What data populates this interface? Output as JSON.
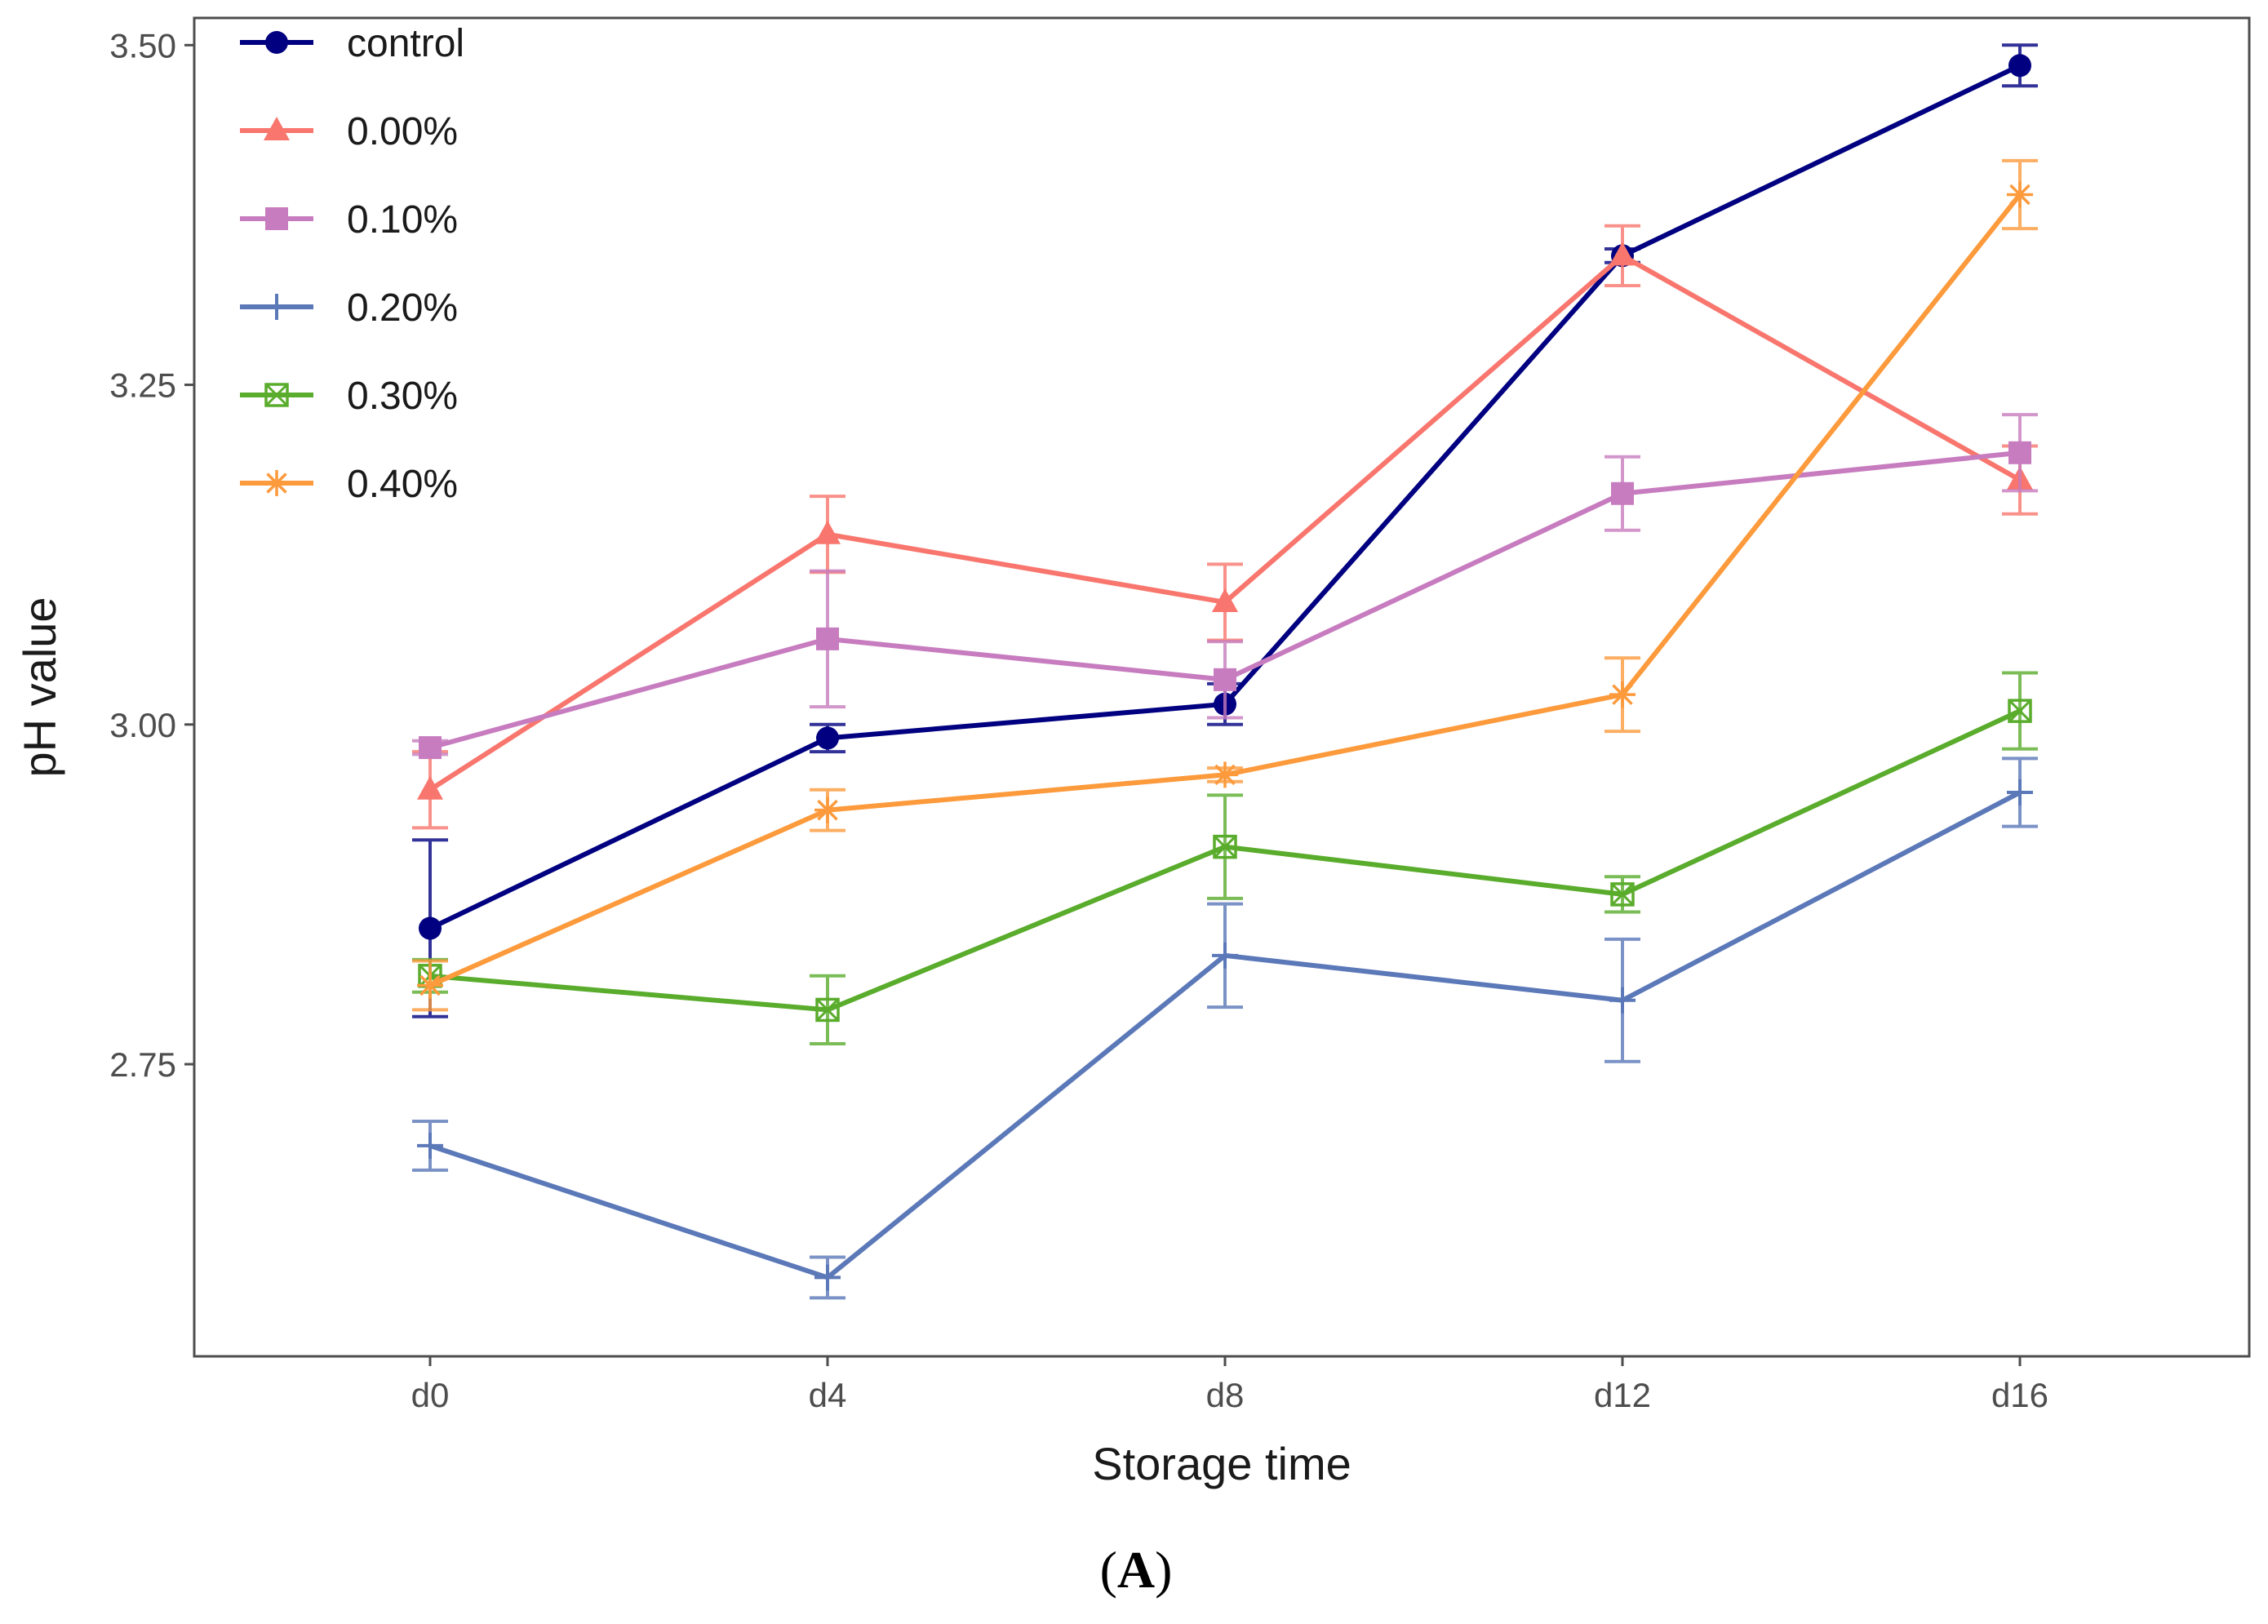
{
  "chart_data": {
    "type": "line",
    "title": "",
    "xlabel": "Storage time",
    "ylabel": "pH value",
    "caption_open": "(",
    "caption_letter": "A",
    "caption_close": ")",
    "categories": [
      "d0",
      "d4",
      "d8",
      "d12",
      "d16"
    ],
    "ylim": [
      2.535,
      3.52
    ],
    "yticks": [
      2.75,
      3.0,
      3.25,
      3.5
    ],
    "ytick_labels": [
      "2.75",
      "3.00",
      "3.25",
      "3.50"
    ],
    "legend_position": "top-left",
    "grid": false,
    "series": [
      {
        "name": "control",
        "color": "#000080",
        "marker": "circle",
        "values": [
          2.85,
          2.99,
          3.015,
          3.345,
          3.485
        ],
        "errors": [
          0.065,
          0.01,
          0.015,
          0.005,
          0.015
        ]
      },
      {
        "name": "0.00%",
        "color": "#f8766d",
        "marker": "triangle",
        "values": [
          2.952,
          3.14,
          3.09,
          3.345,
          3.18
        ],
        "errors": [
          0.028,
          0.028,
          0.028,
          0.022,
          0.025
        ]
      },
      {
        "name": "0.10%",
        "color": "#c77cbf",
        "marker": "square",
        "values": [
          2.983,
          3.063,
          3.033,
          3.17,
          3.2
        ],
        "errors": [
          0.005,
          0.05,
          0.028,
          0.027,
          0.028
        ]
      },
      {
        "name": "0.20%",
        "color": "#5b78b8",
        "marker": "plus",
        "values": [
          2.69,
          2.593,
          2.83,
          2.797,
          2.95
        ],
        "errors": [
          0.018,
          0.015,
          0.038,
          0.045,
          0.025
        ]
      },
      {
        "name": "0.30%",
        "color": "#5aac2c",
        "marker": "square-x",
        "values": [
          2.815,
          2.79,
          2.91,
          2.875,
          3.01
        ],
        "errors": [
          0.012,
          0.025,
          0.038,
          0.013,
          0.028
        ]
      },
      {
        "name": "0.40%",
        "color": "#fc9a3c",
        "marker": "star",
        "values": [
          2.808,
          2.937,
          2.963,
          3.022,
          3.39
        ],
        "errors": [
          0.018,
          0.015,
          0.005,
          0.027,
          0.025
        ]
      }
    ]
  }
}
